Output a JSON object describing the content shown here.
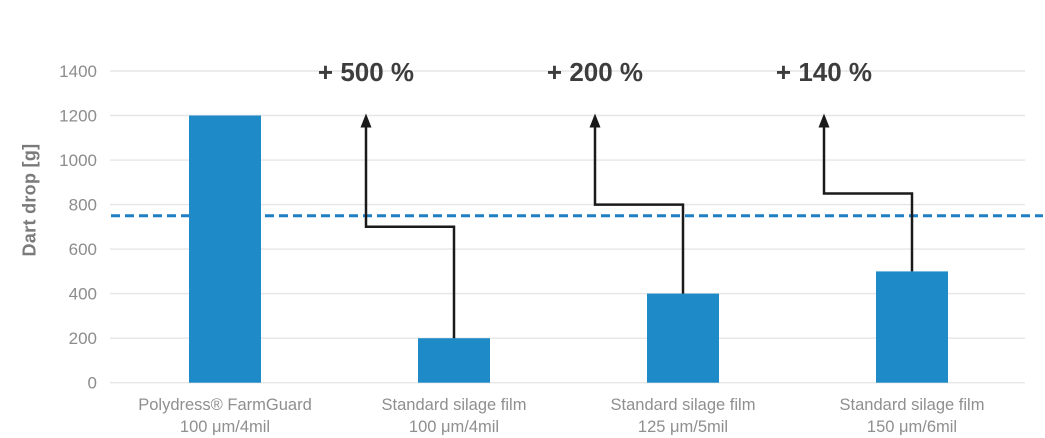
{
  "chart_data": {
    "type": "bar",
    "title": "",
    "ylabel": "Dart drop [g]",
    "xlabel": "",
    "ylim": [
      0,
      1400
    ],
    "yticks": [
      0,
      200,
      400,
      600,
      800,
      1000,
      1200,
      1400
    ],
    "grid": true,
    "legend": null,
    "bar_color": "#1e8bc8",
    "reference_line": {
      "value": 750,
      "style": "dashed",
      "color": "#1e7fc2"
    },
    "categories": [
      {
        "line1": "Polydress® FarmGuard",
        "line2": "100 μm/4mil"
      },
      {
        "line1": "Standard silage film",
        "line2": "100 μm/4mil"
      },
      {
        "line1": "Standard silage film",
        "line2": "125 μm/5mil"
      },
      {
        "line1": "Standard silage film",
        "line2": "150 μm/6mil"
      }
    ],
    "values": [
      1200,
      200,
      400,
      500
    ],
    "annotations": [
      {
        "label": "+ 500 %",
        "bar_index": 1,
        "elbow_value": 700,
        "arrow_tip_value": 1200
      },
      {
        "label": "+ 200 %",
        "bar_index": 2,
        "elbow_value": 800,
        "arrow_tip_value": 1200
      },
      {
        "label": "+ 140 %",
        "bar_index": 3,
        "elbow_value": 850,
        "arrow_tip_value": 1200
      }
    ],
    "colors": {
      "grid": "#e6e6e6",
      "tick_label": "#8c8c8c",
      "category_label": "#8f8f8f",
      "axis_title": "#7a7a7a",
      "annotation_text": "#3d3d3d",
      "arrow": "#1a1a1a",
      "background": "#ffffff"
    }
  }
}
